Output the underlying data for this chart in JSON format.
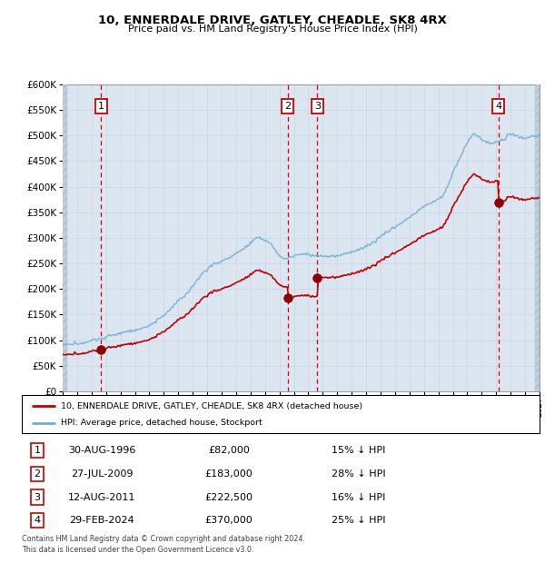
{
  "title": "10, ENNERDALE DRIVE, GATLEY, CHEADLE, SK8 4RX",
  "subtitle": "Price paid vs. HM Land Registry's House Price Index (HPI)",
  "ytick_values": [
    0,
    50000,
    100000,
    150000,
    200000,
    250000,
    300000,
    350000,
    400000,
    450000,
    500000,
    550000,
    600000
  ],
  "xmin": 1994,
  "xmax": 2027,
  "ymin": 0,
  "ymax": 600000,
  "hpi_color": "#6baed6",
  "price_color": "#c00000",
  "marker_color": "#8b0000",
  "grid_color": "#c8d4e4",
  "plot_bg_color": "#dce6f1",
  "transactions": [
    {
      "num": 1,
      "date": "30-AUG-1996",
      "price": 82000,
      "pct": "15%",
      "dir": "↓",
      "year": 1996.67
    },
    {
      "num": 2,
      "date": "27-JUL-2009",
      "price": 183000,
      "pct": "28%",
      "dir": "↓",
      "year": 2009.57
    },
    {
      "num": 3,
      "date": "12-AUG-2011",
      "price": 222500,
      "pct": "16%",
      "dir": "↓",
      "year": 2011.62
    },
    {
      "num": 4,
      "date": "29-FEB-2024",
      "price": 370000,
      "pct": "25%",
      "dir": "↓",
      "year": 2024.16
    }
  ],
  "legend_property_label": "10, ENNERDALE DRIVE, GATLEY, CHEADLE, SK8 4RX (detached house)",
  "legend_hpi_label": "HPI: Average price, detached house, Stockport",
  "footer_line1": "Contains HM Land Registry data © Crown copyright and database right 2024.",
  "footer_line2": "This data is licensed under the Open Government Licence v3.0."
}
